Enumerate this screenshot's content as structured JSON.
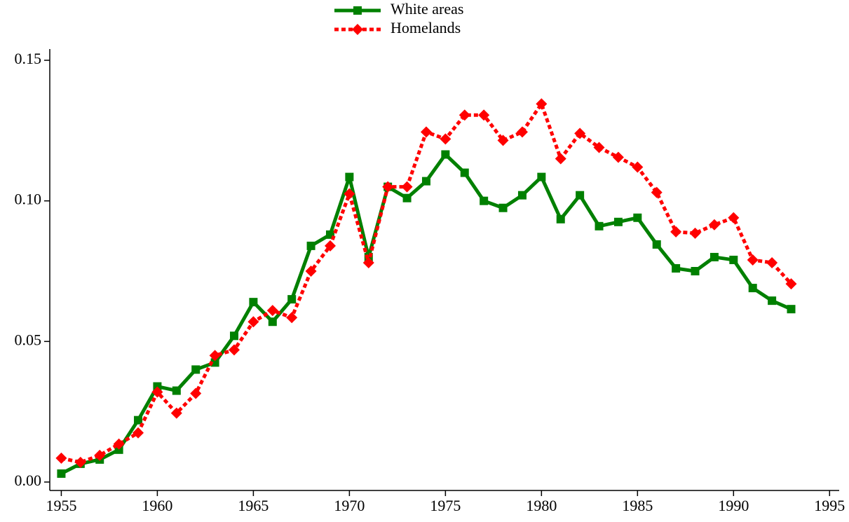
{
  "chart_data": {
    "type": "line",
    "x": [
      1955,
      1956,
      1957,
      1958,
      1959,
      1960,
      1961,
      1962,
      1963,
      1964,
      1965,
      1966,
      1967,
      1968,
      1969,
      1970,
      1971,
      1972,
      1973,
      1974,
      1975,
      1976,
      1977,
      1978,
      1979,
      1980,
      1981,
      1982,
      1983,
      1984,
      1985,
      1986,
      1987,
      1988,
      1989,
      1990,
      1991,
      1992,
      1993
    ],
    "series": [
      {
        "name": "White areas",
        "color": "#008000",
        "marker": "square",
        "dash": "solid",
        "values": [
          0.003,
          0.0065,
          0.008,
          0.0115,
          0.022,
          0.034,
          0.0325,
          0.04,
          0.0425,
          0.052,
          0.064,
          0.057,
          0.065,
          0.084,
          0.088,
          0.1085,
          0.08,
          0.105,
          0.101,
          0.107,
          0.1165,
          0.11,
          0.1,
          0.0975,
          0.102,
          0.1085,
          0.0935,
          0.102,
          0.091,
          0.0925,
          0.094,
          0.0845,
          0.076,
          0.075,
          0.08,
          0.079,
          0.069,
          0.0645,
          0.0615
        ]
      },
      {
        "name": "Homelands",
        "color": "#ff0000",
        "marker": "diamond",
        "dash": "dotted",
        "values": [
          0.0085,
          0.007,
          0.0095,
          0.0135,
          0.0175,
          0.032,
          0.0245,
          0.0315,
          0.045,
          0.047,
          0.057,
          0.061,
          0.0585,
          0.075,
          0.084,
          0.1025,
          0.078,
          0.105,
          0.105,
          0.1245,
          0.122,
          0.1305,
          0.1305,
          0.1215,
          0.1245,
          0.1345,
          0.115,
          0.124,
          0.119,
          0.1155,
          0.112,
          0.103,
          0.089,
          0.0885,
          0.0915,
          0.094,
          0.079,
          0.078,
          0.0705
        ]
      }
    ],
    "xlim": [
      1954.4,
      1995.5
    ],
    "xticks": [
      1955,
      1960,
      1965,
      1970,
      1975,
      1980,
      1985,
      1990,
      1995
    ],
    "ylim": [
      -0.003,
      0.154
    ],
    "yticks": [
      {
        "value": 0,
        "label": "0.00"
      },
      {
        "value": 0.05,
        "label": "0.05"
      },
      {
        "value": 0.1,
        "label": "0.10"
      },
      {
        "value": 0.15,
        "label": "0.15"
      }
    ],
    "legend": "top"
  }
}
